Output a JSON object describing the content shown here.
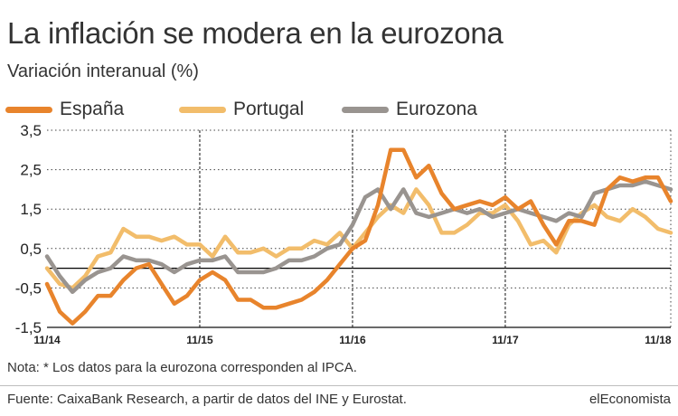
{
  "header": {
    "title": "La inflación se modera en la eurozona",
    "subtitle": "Variación interanual (%)"
  },
  "footer": {
    "note": "Nota: * Los datos para la eurozona corresponden al IPCA.",
    "source": "Fuente: CaixaBank Research, a partir de datos del INE y Eurostat.",
    "brand": "elEconomista"
  },
  "colors": {
    "espana": "#e8842c",
    "portugal": "#f2bd6b",
    "eurozona": "#999490",
    "zero_line": "#000000",
    "grid": "#444444"
  },
  "chart_data": {
    "type": "line",
    "title": "La inflación se modera en la eurozona",
    "ylabel": "Variación interanual (%)",
    "xlabel": "",
    "ylim": [
      -1.5,
      3.5
    ],
    "yticks": [
      3.5,
      2.5,
      1.5,
      0.5,
      -0.5,
      -1.5
    ],
    "ytick_labels": [
      "3,5",
      "2,5",
      "1,5",
      "0,5",
      "-0,5",
      "-1,5"
    ],
    "x_tick_labels": [
      "11/14",
      "11/15",
      "11/16",
      "11/17",
      "11/18"
    ],
    "x_tick_index": [
      0,
      12,
      24,
      36,
      48
    ],
    "legend": [
      "España",
      "Portugal",
      "Eurozona"
    ],
    "legend_position": "top",
    "series": [
      {
        "name": "España",
        "values": [
          -0.4,
          -1.1,
          -1.4,
          -1.1,
          -0.7,
          -0.7,
          -0.3,
          0,
          0.1,
          -0.4,
          -0.9,
          -0.7,
          -0.3,
          -0.1,
          -0.3,
          -0.8,
          -0.8,
          -1.0,
          -1.0,
          -0.9,
          -0.8,
          -0.6,
          -0.3,
          0.1,
          0.5,
          0.7,
          1.6,
          3.0,
          3.0,
          2.3,
          2.6,
          1.9,
          1.5,
          1.6,
          1.7,
          1.6,
          1.8,
          1.5,
          1.7,
          1.1,
          0.6,
          1.2,
          1.2,
          1.1,
          2.0,
          2.3,
          2.2,
          2.3,
          2.3,
          1.7
        ]
      },
      {
        "name": "Portugal",
        "values": [
          0.0,
          -0.4,
          -0.5,
          -0.2,
          0.3,
          0.4,
          1.0,
          0.8,
          0.8,
          0.7,
          0.8,
          0.6,
          0.6,
          0.3,
          0.8,
          0.4,
          0.4,
          0.5,
          0.3,
          0.5,
          0.5,
          0.7,
          0.6,
          0.9,
          0.5,
          0.9,
          1.3,
          1.6,
          1.4,
          2.0,
          1.6,
          0.9,
          0.9,
          1.1,
          1.4,
          1.4,
          1.6,
          1.2,
          0.6,
          0.7,
          0.4,
          1.1,
          1.4,
          1.6,
          1.3,
          1.2,
          1.5,
          1.3,
          1.0,
          0.9
        ]
      },
      {
        "name": "Eurozona",
        "values": [
          0.3,
          -0.2,
          -0.6,
          -0.3,
          -0.1,
          0.0,
          0.3,
          0.2,
          0.2,
          0.1,
          -0.1,
          0.1,
          0.2,
          0.2,
          0.3,
          -0.1,
          -0.1,
          -0.1,
          0.0,
          0.2,
          0.2,
          0.3,
          0.5,
          0.6,
          1.1,
          1.8,
          2.0,
          1.5,
          2.0,
          1.4,
          1.3,
          1.4,
          1.5,
          1.4,
          1.5,
          1.3,
          1.4,
          1.5,
          1.4,
          1.3,
          1.2,
          1.4,
          1.3,
          1.9,
          2.0,
          2.1,
          2.1,
          2.2,
          2.1,
          2.0
        ]
      }
    ]
  }
}
